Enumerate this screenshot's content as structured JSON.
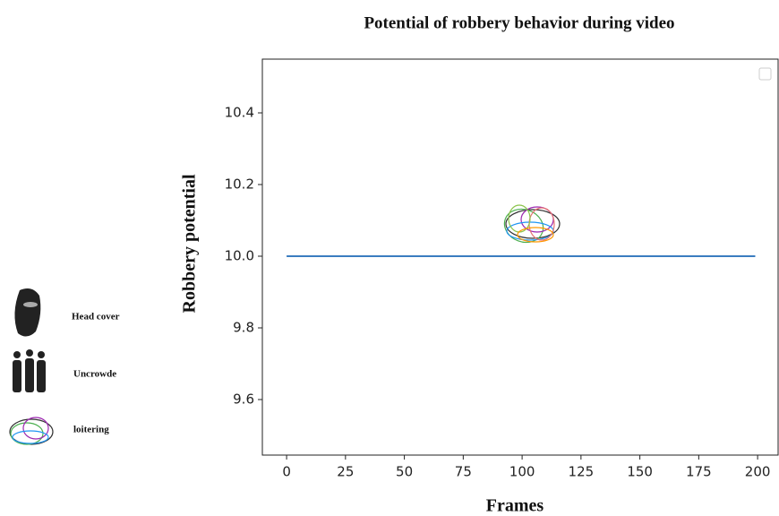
{
  "chart_data": {
    "type": "line",
    "title": "Potential of robbery behavior during video",
    "xlabel": "Frames",
    "ylabel": "Robbery potential",
    "x": [
      0,
      199
    ],
    "series": [
      {
        "color": "#3b7dc0",
        "values": [
          10,
          10
        ]
      }
    ],
    "xlim": [
      -10.3,
      208.7
    ],
    "ylim": [
      9.445,
      10.55
    ],
    "xticks": [
      0,
      25,
      50,
      75,
      100,
      125,
      150,
      175,
      200
    ],
    "yticks": [
      9.6,
      9.8,
      {
        "value": 10,
        "label": "10.0"
      },
      10.2,
      10.4
    ],
    "side_legend": [
      "Head cover",
      "Uncrowde",
      "loitering"
    ],
    "grid": false
  }
}
